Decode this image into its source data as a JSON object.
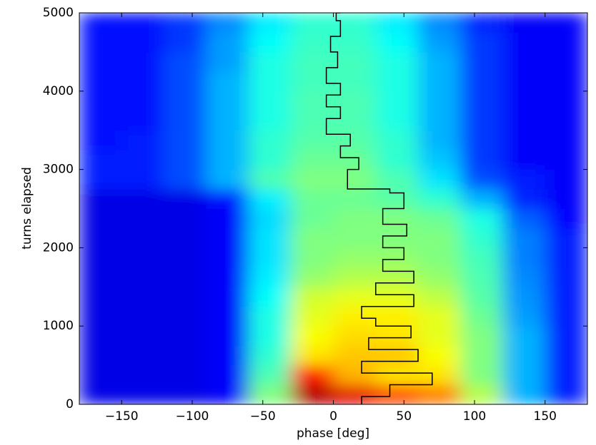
{
  "chart_data": {
    "type": "heatmap_line",
    "xlabel": "phase [deg]",
    "ylabel": "turns elapsed",
    "xlim": [
      -180,
      180
    ],
    "ylim": [
      0,
      5000
    ],
    "xticks": [
      {
        "value": -150,
        "label": "−150"
      },
      {
        "value": -100,
        "label": "−100"
      },
      {
        "value": -50,
        "label": "−50"
      },
      0,
      50,
      100,
      150
    ],
    "yticks": [
      0,
      1000,
      2000,
      3000,
      4000,
      5000
    ],
    "colormap": "jet",
    "z": [
      [
        0.1,
        0.1,
        0.1,
        0.12,
        0.5,
        0.95,
        0.9,
        0.8,
        0.75,
        0.55,
        0.3,
        0.15
      ],
      [
        0.1,
        0.1,
        0.1,
        0.12,
        0.45,
        0.85,
        0.7,
        0.65,
        0.65,
        0.5,
        0.3,
        0.15
      ],
      [
        0.1,
        0.1,
        0.1,
        0.12,
        0.42,
        0.65,
        0.68,
        0.68,
        0.62,
        0.5,
        0.3,
        0.15
      ],
      [
        0.1,
        0.1,
        0.1,
        0.12,
        0.4,
        0.62,
        0.66,
        0.65,
        0.6,
        0.5,
        0.3,
        0.15
      ],
      [
        0.1,
        0.1,
        0.1,
        0.12,
        0.4,
        0.6,
        0.64,
        0.64,
        0.6,
        0.48,
        0.28,
        0.15
      ],
      [
        0.1,
        0.1,
        0.1,
        0.12,
        0.38,
        0.58,
        0.6,
        0.6,
        0.56,
        0.46,
        0.27,
        0.15
      ],
      [
        0.1,
        0.1,
        0.1,
        0.12,
        0.36,
        0.52,
        0.55,
        0.55,
        0.52,
        0.45,
        0.26,
        0.15
      ],
      [
        0.1,
        0.1,
        0.1,
        0.12,
        0.35,
        0.5,
        0.52,
        0.52,
        0.5,
        0.44,
        0.25,
        0.15
      ],
      [
        0.1,
        0.1,
        0.1,
        0.12,
        0.35,
        0.5,
        0.5,
        0.5,
        0.5,
        0.42,
        0.25,
        0.15
      ],
      [
        0.1,
        0.1,
        0.1,
        0.12,
        0.34,
        0.48,
        0.5,
        0.5,
        0.48,
        0.4,
        0.22,
        0.13
      ],
      [
        0.1,
        0.1,
        0.1,
        0.14,
        0.36,
        0.48,
        0.48,
        0.46,
        0.42,
        0.3,
        0.16,
        0.12
      ],
      [
        0.15,
        0.15,
        0.2,
        0.3,
        0.45,
        0.5,
        0.5,
        0.45,
        0.35,
        0.2,
        0.15,
        0.12
      ],
      [
        0.15,
        0.15,
        0.2,
        0.3,
        0.42,
        0.48,
        0.48,
        0.42,
        0.32,
        0.18,
        0.12,
        0.12
      ],
      [
        0.14,
        0.15,
        0.2,
        0.3,
        0.42,
        0.46,
        0.46,
        0.42,
        0.3,
        0.18,
        0.12,
        0.12
      ],
      [
        0.14,
        0.14,
        0.2,
        0.3,
        0.4,
        0.45,
        0.45,
        0.4,
        0.3,
        0.18,
        0.12,
        0.12
      ],
      [
        0.14,
        0.14,
        0.2,
        0.3,
        0.4,
        0.45,
        0.45,
        0.4,
        0.3,
        0.18,
        0.12,
        0.12
      ],
      [
        0.14,
        0.14,
        0.2,
        0.3,
        0.4,
        0.44,
        0.44,
        0.4,
        0.3,
        0.18,
        0.12,
        0.12
      ],
      [
        0.14,
        0.14,
        0.2,
        0.28,
        0.4,
        0.44,
        0.44,
        0.4,
        0.3,
        0.18,
        0.12,
        0.12
      ],
      [
        0.14,
        0.14,
        0.18,
        0.28,
        0.38,
        0.43,
        0.43,
        0.38,
        0.28,
        0.18,
        0.12,
        0.12
      ],
      [
        0.14,
        0.14,
        0.18,
        0.26,
        0.36,
        0.42,
        0.42,
        0.36,
        0.26,
        0.16,
        0.12,
        0.12
      ]
    ],
    "line": {
      "color": "#000000",
      "x": [
        20,
        40,
        70,
        20,
        60,
        25,
        55,
        30,
        20,
        57,
        30,
        57,
        35,
        50,
        35,
        52,
        35,
        50,
        40,
        10,
        10,
        18,
        5,
        12,
        -5,
        5,
        -5,
        5,
        -5,
        3,
        -2,
        5,
        2,
        5
      ],
      "y": [
        0,
        100,
        250,
        400,
        550,
        700,
        850,
        1000,
        1100,
        1250,
        1400,
        1550,
        1700,
        1850,
        2000,
        2150,
        2300,
        2500,
        2700,
        2750,
        2850,
        3000,
        3150,
        3300,
        3450,
        3650,
        3800,
        3950,
        4100,
        4300,
        4500,
        4700,
        4900,
        5000
      ]
    }
  }
}
